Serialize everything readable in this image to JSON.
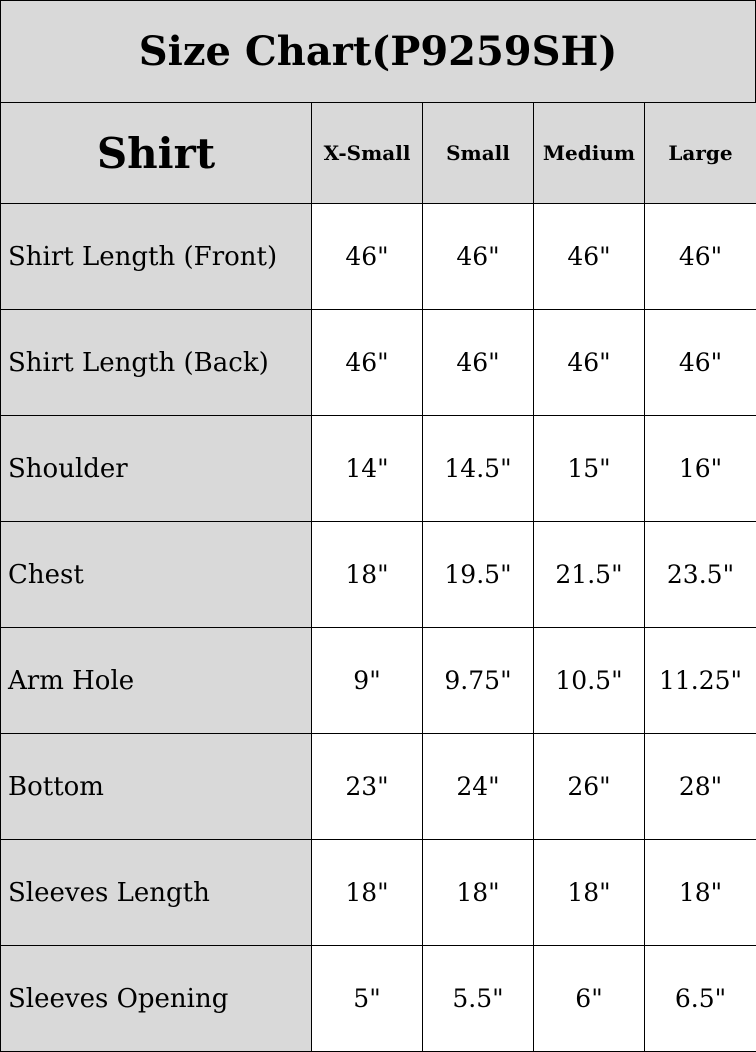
{
  "title": "Size Chart(P9259SH)",
  "header": {
    "corner": "Shirt",
    "sizes": [
      "X-Small",
      "Small",
      "Medium",
      "Large"
    ]
  },
  "rows": [
    {
      "label": "Shirt Length (Front)",
      "values": [
        "46\"",
        "46\"",
        "46\"",
        "46\""
      ]
    },
    {
      "label": "Shirt Length (Back)",
      "values": [
        "46\"",
        "46\"",
        "46\"",
        "46\""
      ]
    },
    {
      "label": "Shoulder",
      "values": [
        "14\"",
        "14.5\"",
        "15\"",
        "16\""
      ]
    },
    {
      "label": "Chest",
      "values": [
        "18\"",
        "19.5\"",
        "21.5\"",
        "23.5\""
      ]
    },
    {
      "label": "Arm Hole",
      "values": [
        "9\"",
        "9.75\"",
        "10.5\"",
        "11.25\""
      ]
    },
    {
      "label": "Bottom",
      "values": [
        "23\"",
        "24\"",
        "26\"",
        "28\""
      ]
    },
    {
      "label": "Sleeves Length",
      "values": [
        "18\"",
        "18\"",
        "18\"",
        "18\""
      ]
    },
    {
      "label": "Sleeves Opening",
      "values": [
        "5\"",
        "5.5\"",
        "6\"",
        "6.5\""
      ]
    }
  ],
  "colors": {
    "header_bg": "#d9d9d9",
    "border": "#000000"
  }
}
